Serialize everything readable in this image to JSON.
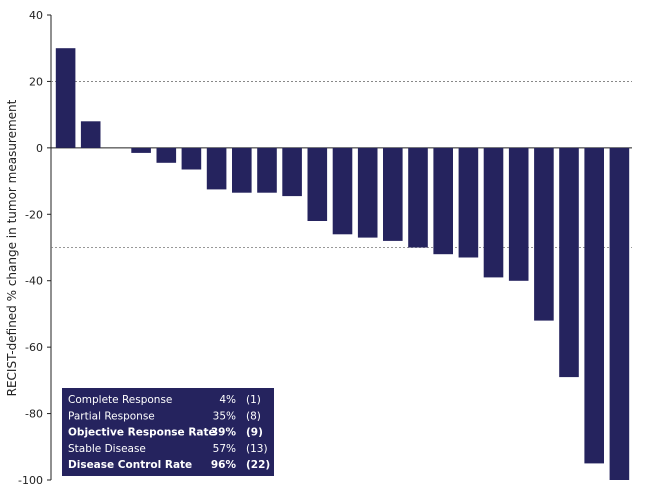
{
  "chart_data": {
    "type": "bar",
    "title": "",
    "xlabel": "",
    "ylabel": "RECIST-defined % change in tumor measurement",
    "ylim": [
      -100,
      40
    ],
    "yticks": [
      40,
      20,
      0,
      -20,
      -40,
      -60,
      -80,
      -100
    ],
    "reference_lines": [
      20,
      -30
    ],
    "grid": false,
    "bar_color": "#25235e",
    "values": [
      30,
      8,
      0,
      -1.5,
      -4.5,
      -6.5,
      -12.5,
      -13.5,
      -13.5,
      -14.5,
      -22,
      -26,
      -27,
      -28,
      -30,
      -32,
      -33,
      -39,
      -40,
      -52,
      -69,
      -95,
      -100
    ],
    "legend_position": "bottom-left",
    "summary_table": [
      {
        "label": "Complete Response",
        "percent": "4%",
        "count": "(1)",
        "bold": false
      },
      {
        "label": "Partial Response",
        "percent": "35%",
        "count": "(8)",
        "bold": false
      },
      {
        "label": "Objective Response Rate",
        "percent": "39%",
        "count": "(9)",
        "bold": true
      },
      {
        "label": "Stable Disease",
        "percent": "57%",
        "count": "(13)",
        "bold": false
      },
      {
        "label": "Disease Control Rate",
        "percent": "96%",
        "count": "(22)",
        "bold": true
      }
    ]
  }
}
